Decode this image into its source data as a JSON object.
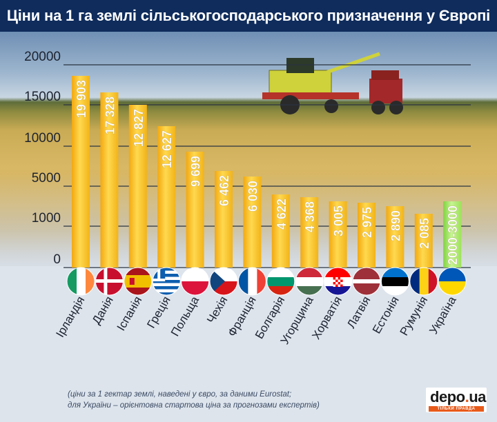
{
  "header": {
    "title": "Ціни на 1 га землі сільськогосподарського призначення у Європі"
  },
  "chart_data": {
    "type": "bar",
    "title": "Ціни на 1 га землі сільськогосподарського призначення у Європі",
    "xlabel": "",
    "ylabel": "",
    "y_tick_labels": [
      "20000",
      "15000",
      "10000",
      "5000",
      "1000",
      "0"
    ],
    "categories": [
      "Ірландія",
      "Данія",
      "Іспанія",
      "Греція",
      "Польща",
      "Чехія",
      "Франція",
      "Болгарія",
      "Угорщина",
      "Хорватія",
      "Латвія",
      "Естонія",
      "Румунія",
      "Україна"
    ],
    "values": [
      19903,
      17328,
      12827,
      12627,
      9699,
      6462,
      6030,
      4622,
      4368,
      3005,
      2975,
      2890,
      2085,
      2500
    ],
    "data_labels": [
      "19 903",
      "17 328",
      "12 827",
      "12 627",
      "9 699",
      "6 462",
      "6 030",
      "4 622",
      "4 368",
      "3 005",
      "2 975",
      "2 890",
      "2 085",
      "2000-3000"
    ],
    "highlight_category": "Україна",
    "highlight_range": [
      2000,
      3000
    ],
    "colors": {
      "bar": "#f2b318",
      "bar_light": "#ffdf63",
      "highlight": "#9ee25b",
      "highlight_light": "#c6f492"
    },
    "grid": true,
    "legend": "none"
  },
  "flags": [
    {
      "name": "ireland-flag-icon",
      "colors": [
        "#169b62",
        "#ffffff",
        "#ff883e"
      ],
      "layout": "v3"
    },
    {
      "name": "denmark-flag-icon",
      "colors": [
        "#c8102e",
        "#ffffff"
      ],
      "layout": "nordic"
    },
    {
      "name": "spain-flag-icon",
      "colors": [
        "#aa151b",
        "#f1bf00"
      ],
      "layout": "spain"
    },
    {
      "name": "greece-flag-icon",
      "colors": [
        "#0d5eaf",
        "#ffffff"
      ],
      "layout": "greece"
    },
    {
      "name": "poland-flag-icon",
      "colors": [
        "#ffffff",
        "#dc143c"
      ],
      "layout": "h2"
    },
    {
      "name": "czechia-flag-icon",
      "colors": [
        "#ffffff",
        "#d7141a",
        "#11457e"
      ],
      "layout": "czech"
    },
    {
      "name": "france-flag-icon",
      "colors": [
        "#0055a4",
        "#ffffff",
        "#ef4135"
      ],
      "layout": "v3"
    },
    {
      "name": "bulgaria-flag-icon",
      "colors": [
        "#ffffff",
        "#00966e",
        "#d62612"
      ],
      "layout": "h3"
    },
    {
      "name": "hungary-flag-icon",
      "colors": [
        "#ce2939",
        "#ffffff",
        "#477050"
      ],
      "layout": "h3"
    },
    {
      "name": "croatia-flag-icon",
      "colors": [
        "#ff0000",
        "#ffffff",
        "#171796"
      ],
      "layout": "croatia"
    },
    {
      "name": "latvia-flag-icon",
      "colors": [
        "#9e3039",
        "#ffffff",
        "#9e3039"
      ],
      "layout": "latvia"
    },
    {
      "name": "estonia-flag-icon",
      "colors": [
        "#0072ce",
        "#000000",
        "#ffffff"
      ],
      "layout": "h3"
    },
    {
      "name": "romania-flag-icon",
      "colors": [
        "#002b7f",
        "#fcd116",
        "#ce1126"
      ],
      "layout": "v3"
    },
    {
      "name": "ukraine-flag-icon",
      "colors": [
        "#0057b7",
        "#ffd700"
      ],
      "layout": "h2"
    }
  ],
  "footnote": {
    "line1": "(ціни за 1 гектар землі, наведені у євро, за даними Eurostat;",
    "line2": "для України – орієнтовна стартова ціна за прогнозами експертів)"
  },
  "logo": {
    "main": "depo",
    "dot": ".",
    "suffix": "ua",
    "tagline": "ТІЛЬКИ ПРАВДА"
  }
}
